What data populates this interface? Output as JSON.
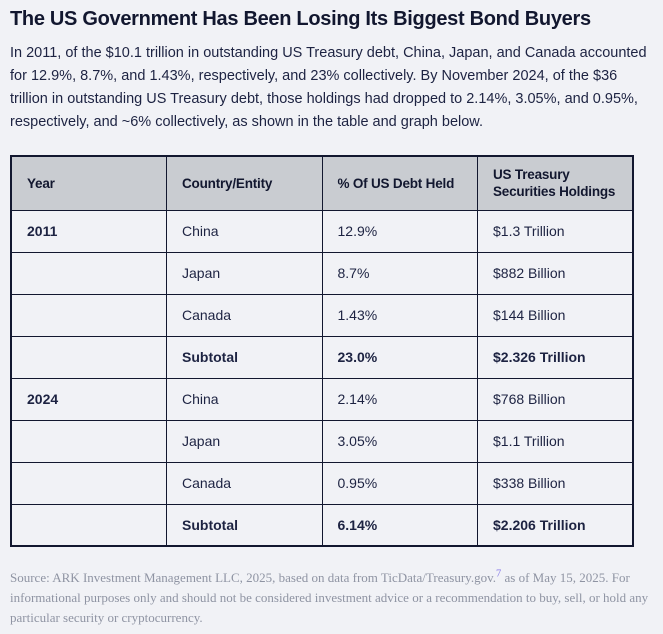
{
  "page": {
    "title": "The US Government Has Been Losing Its Biggest Bond Buyers",
    "intro": "In 2011, of the $10.1 trillion in outstanding US Treasury debt, China, Japan, and Canada accounted for 12.9%, 8.7%, and 1.43%, respectively, and 23% collectively. By November 2024, of the $36 trillion in outstanding US Treasury debt, those holdings had dropped to 2.14%, 3.05%, and 0.95%, respectively, and ~6% collectively, as shown in the table and graph below."
  },
  "table": {
    "headers": [
      "Year",
      "Country/Entity",
      "% Of US Debt Held",
      "US Treasury Securities Holdings"
    ],
    "rows": [
      {
        "year": "2011",
        "country": "China",
        "pct": "12.9%",
        "holdings": "$1.3 Trillion",
        "bold": false
      },
      {
        "year": "",
        "country": "Japan",
        "pct": "8.7%",
        "holdings": "$882 Billion",
        "bold": false
      },
      {
        "year": "",
        "country": "Canada",
        "pct": "1.43%",
        "holdings": "$144 Billion",
        "bold": false
      },
      {
        "year": "",
        "country": "Subtotal",
        "pct": "23.0%",
        "holdings": "$2.326 Trillion",
        "bold": true
      },
      {
        "year": "2024",
        "country": "China",
        "pct": "2.14%",
        "holdings": "$768 Billion",
        "bold": false
      },
      {
        "year": "",
        "country": "Japan",
        "pct": "3.05%",
        "holdings": "$1.1 Trillion",
        "bold": false
      },
      {
        "year": "",
        "country": "Canada",
        "pct": "0.95%",
        "holdings": "$338 Billion",
        "bold": false
      },
      {
        "year": "",
        "country": "Subtotal",
        "pct": "6.14%",
        "holdings": "$2.206 Trillion",
        "bold": true
      }
    ]
  },
  "source": {
    "prefix": "Source: ARK Investment Management LLC, 2025, based on data from TicData/Treasury.gov.",
    "footnote": "7",
    "suffix": " as of May 15, 2025. For informational purposes only and should not be considered investment advice or a recommendation to buy, sell, or hold any particular security or cryptocurrency."
  },
  "chart_data": {
    "type": "table",
    "title": "The US Government Has Been Losing Its Biggest Bond Buyers",
    "columns": [
      "Year",
      "Country/Entity",
      "% Of US Debt Held",
      "US Treasury Securities Holdings"
    ],
    "rows": [
      [
        "2011",
        "China",
        "12.9%",
        "$1.3 Trillion"
      ],
      [
        "2011",
        "Japan",
        "8.7%",
        "$882 Billion"
      ],
      [
        "2011",
        "Canada",
        "1.43%",
        "$144 Billion"
      ],
      [
        "2011",
        "Subtotal",
        "23.0%",
        "$2.326 Trillion"
      ],
      [
        "2024",
        "China",
        "2.14%",
        "$768 Billion"
      ],
      [
        "2024",
        "Japan",
        "3.05%",
        "$1.1 Trillion"
      ],
      [
        "2024",
        "Canada",
        "0.95%",
        "$338 Billion"
      ],
      [
        "2024",
        "Subtotal",
        "6.14%",
        "$2.206 Trillion"
      ]
    ]
  },
  "colors": {
    "page_bg": "#f1f2f6",
    "text_dark": "#1d2342",
    "title_text": "#12172f",
    "table_border": "#12172f",
    "header_bg": "#c9ccd1",
    "source_text": "#8f94a3",
    "footnote_link": "#8678e8"
  }
}
